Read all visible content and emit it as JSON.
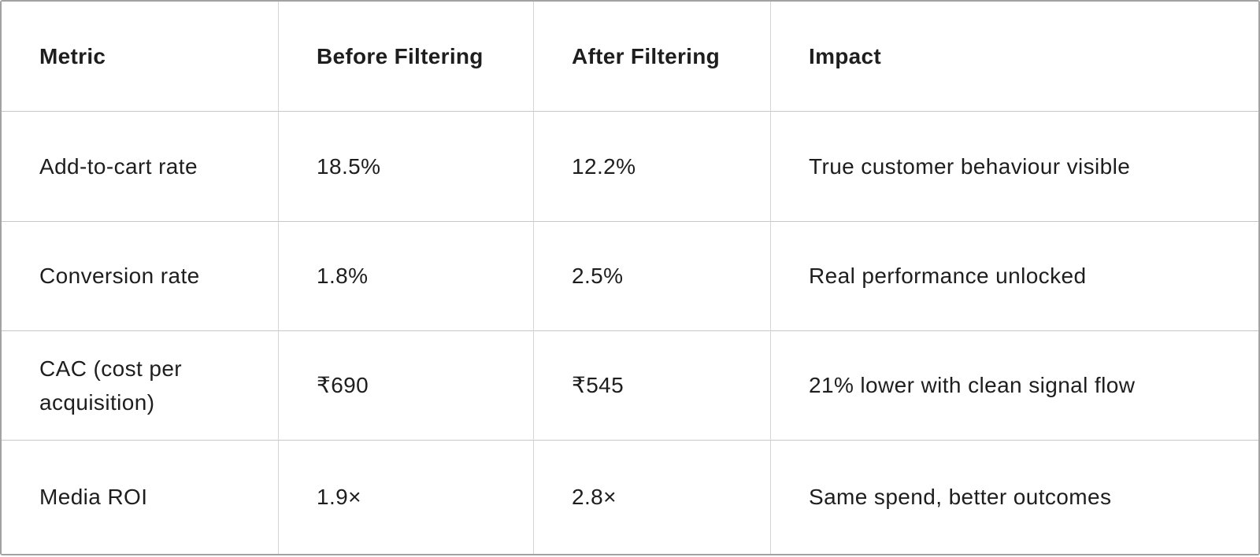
{
  "page": {
    "background_color": "#ffffff",
    "text_color": "#1e1e1e",
    "outer_border_color": "#a2a2a2",
    "vertical_grid_color": "#d6d6d6",
    "horizontal_grid_color": "#c7c7c7"
  },
  "table": {
    "columns": [
      "Metric",
      "Before Filtering",
      "After Filtering",
      "Impact"
    ],
    "rows": [
      {
        "cells": [
          "Add-to-cart rate",
          "18.5%",
          "12.2%",
          "True customer behaviour visible"
        ]
      },
      {
        "cells": [
          "Conversion rate",
          "1.8%",
          "2.5%",
          "Real performance unlocked"
        ]
      },
      {
        "cells": [
          "CAC (cost per acquisition)",
          "₹690",
          "₹545",
          "21% lower with clean signal flow"
        ]
      },
      {
        "cells": [
          "Media ROI",
          "1.9×",
          "2.8×",
          "Same spend, better outcomes"
        ]
      }
    ]
  }
}
